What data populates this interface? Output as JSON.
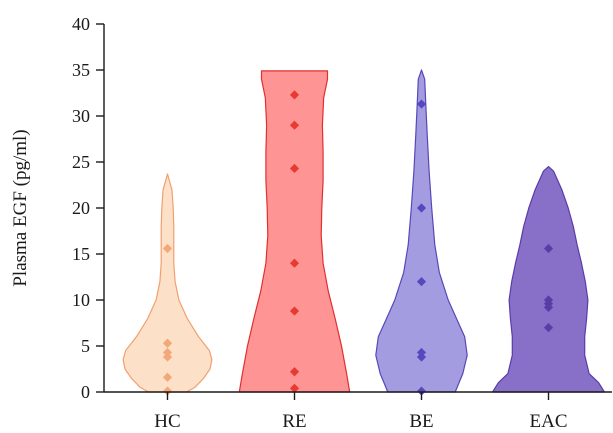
{
  "chart_data": {
    "type": "violin",
    "title": "",
    "xlabel": "",
    "ylabel": "Plasma EGF (pg/ml)",
    "ylim": [
      0,
      40
    ],
    "yticks": [
      "0",
      "5",
      "10",
      "15",
      "20",
      "25",
      "30",
      "35",
      "40"
    ],
    "grid": false,
    "legend": "none",
    "categories": [
      "HC",
      "RE",
      "BE",
      "EAC"
    ],
    "series": [
      {
        "category": "HC",
        "fill": "#fde0c8",
        "stroke": "#f0a070",
        "point_color": "#f2a878",
        "points": [
          15.6,
          5.3,
          4.3,
          3.8,
          1.6,
          0.1
        ],
        "shape": [
          [
            0,
            0.3
          ],
          [
            0.5,
            0.43
          ],
          [
            1.5,
            0.57
          ],
          [
            2.5,
            0.67
          ],
          [
            3.5,
            0.7
          ],
          [
            4.5,
            0.66
          ],
          [
            6,
            0.49
          ],
          [
            8,
            0.31
          ],
          [
            10,
            0.18
          ],
          [
            12,
            0.12
          ],
          [
            14,
            0.1
          ],
          [
            16,
            0.1
          ],
          [
            18,
            0.1
          ],
          [
            20,
            0.09
          ],
          [
            22,
            0.07
          ],
          [
            23.7,
            0
          ]
        ]
      },
      {
        "category": "RE",
        "fill": "#ff9494",
        "stroke": "#e03030",
        "point_color": "#e83a30",
        "points": [
          32.3,
          29.0,
          24.3,
          14.0,
          8.8,
          2.2,
          0.4
        ],
        "shape": [
          [
            0,
            0.87
          ],
          [
            2,
            0.82
          ],
          [
            5,
            0.74
          ],
          [
            8,
            0.64
          ],
          [
            11,
            0.53
          ],
          [
            14,
            0.45
          ],
          [
            17,
            0.42
          ],
          [
            20,
            0.43
          ],
          [
            23,
            0.45
          ],
          [
            26,
            0.45
          ],
          [
            29,
            0.44
          ],
          [
            32,
            0.46
          ],
          [
            34,
            0.52
          ],
          [
            34.9,
            0.52
          ]
        ]
      },
      {
        "category": "BE",
        "fill": "#a39ce0",
        "stroke": "#5748b8",
        "point_color": "#5848c0",
        "points": [
          31.3,
          20.0,
          12.0,
          4.3,
          3.8,
          0.1
        ],
        "shape": [
          [
            0,
            0.53
          ],
          [
            2,
            0.65
          ],
          [
            4,
            0.72
          ],
          [
            6,
            0.68
          ],
          [
            8,
            0.55
          ],
          [
            10,
            0.42
          ],
          [
            13,
            0.28
          ],
          [
            16,
            0.21
          ],
          [
            20,
            0.16
          ],
          [
            24,
            0.12
          ],
          [
            28,
            0.09
          ],
          [
            31,
            0.07
          ],
          [
            34,
            0.05
          ],
          [
            35,
            0
          ]
        ]
      },
      {
        "category": "EAC",
        "fill": "#8870c8",
        "stroke": "#5a3ca8",
        "point_color": "#5a3ca8",
        "points": [
          15.6,
          10.0,
          9.6,
          9.2,
          7.0
        ],
        "shape": [
          [
            0,
            0.88
          ],
          [
            1,
            0.79
          ],
          [
            2,
            0.64
          ],
          [
            4,
            0.57
          ],
          [
            6,
            0.57
          ],
          [
            8,
            0.6
          ],
          [
            10,
            0.62
          ],
          [
            12,
            0.58
          ],
          [
            14,
            0.52
          ],
          [
            16,
            0.45
          ],
          [
            18,
            0.39
          ],
          [
            20,
            0.31
          ],
          [
            22,
            0.21
          ],
          [
            24,
            0.08
          ],
          [
            24.5,
            0
          ]
        ]
      }
    ]
  }
}
